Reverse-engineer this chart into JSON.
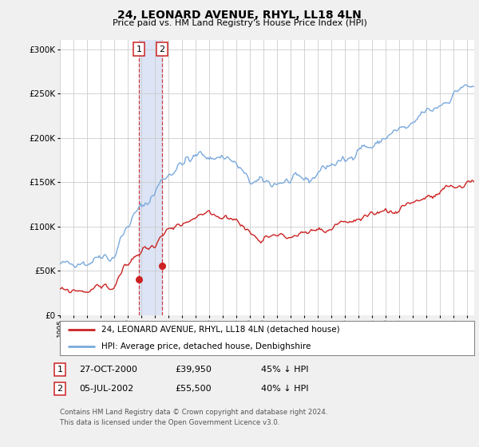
{
  "title": "24, LEONARD AVENUE, RHYL, LL18 4LN",
  "subtitle": "Price paid vs. HM Land Registry's House Price Index (HPI)",
  "ylim": [
    0,
    310000
  ],
  "xlim_start": 1995.0,
  "xlim_end": 2025.5,
  "hpi_color": "#7aaadd",
  "price_color": "#cc2222",
  "transaction1": {
    "date": "27-OCT-2000",
    "price": 39950,
    "label": "1",
    "year": 2000.83
  },
  "transaction2": {
    "date": "05-JUL-2002",
    "price": 55500,
    "label": "2",
    "year": 2002.5
  },
  "legend_house": "24, LEONARD AVENUE, RHYL, LL18 4LN (detached house)",
  "legend_hpi": "HPI: Average price, detached house, Denbighshire",
  "table_row1": [
    "1",
    "27-OCT-2000",
    "£39,950",
    "45% ↓ HPI"
  ],
  "table_row2": [
    "2",
    "05-JUL-2002",
    "£55,500",
    "40% ↓ HPI"
  ],
  "footnote": "Contains HM Land Registry data © Crown copyright and database right 2024.\nThis data is licensed under the Open Government Licence v3.0.",
  "background_color": "#f0f0f0",
  "plot_bg_color": "#ffffff",
  "grid_color": "#cccccc",
  "span_color": "#dce4f5"
}
